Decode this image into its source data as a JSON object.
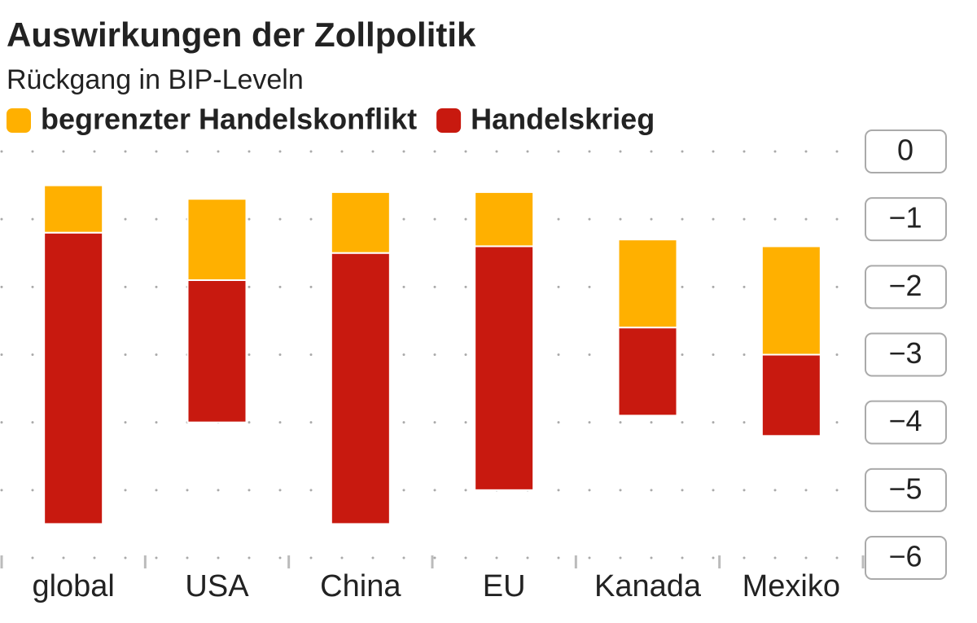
{
  "chart_data": {
    "type": "range-bar",
    "title": "Auswirkungen der Zollpolitik",
    "subtitle": "Rückgang in BIP-Leveln",
    "categories": [
      "global",
      "USA",
      "China",
      "EU",
      "Kanada",
      "Mexiko"
    ],
    "series": [
      {
        "name": "begrenzter Handelskonflikt",
        "color": "#ffb000",
        "values": [
          [
            -0.5,
            -1.2
          ],
          [
            -0.7,
            -1.9
          ],
          [
            -0.6,
            -1.5
          ],
          [
            -0.6,
            -1.4
          ],
          [
            -1.3,
            -2.6
          ],
          [
            -1.4,
            -3.0
          ]
        ]
      },
      {
        "name": "Handelskrieg",
        "color": "#c8190f",
        "values": [
          [
            -1.2,
            -5.5
          ],
          [
            -1.9,
            -4.0
          ],
          [
            -1.5,
            -5.5
          ],
          [
            -1.4,
            -5.0
          ],
          [
            -2.6,
            -3.9
          ],
          [
            -3.0,
            -4.2
          ]
        ]
      }
    ],
    "ylim": [
      -6,
      0
    ],
    "yticks": [
      0,
      {
        "value": -1,
        "label": "−1"
      },
      {
        "value": -2,
        "label": "−2"
      },
      {
        "value": -3,
        "label": "−3"
      },
      {
        "value": -4,
        "label": "−4"
      },
      {
        "value": -5,
        "label": "−5"
      },
      {
        "value": -6,
        "label": "−6"
      }
    ],
    "grid": true
  }
}
